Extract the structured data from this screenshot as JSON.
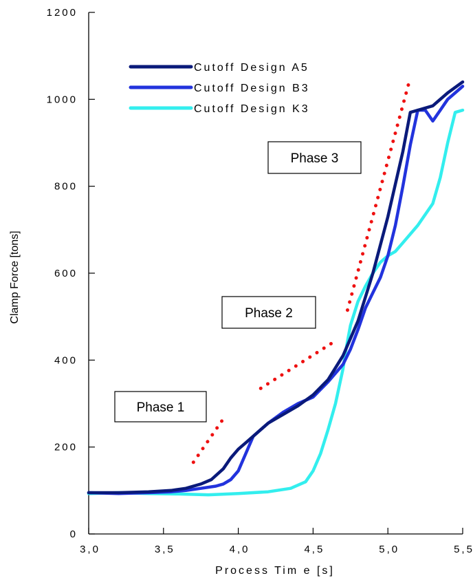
{
  "chart_data": {
    "type": "line",
    "xlabel": "Process Tim e [s]",
    "ylabel": "Clamp Force [tons]",
    "xlim": [
      3.0,
      5.5
    ],
    "ylim": [
      0,
      1200
    ],
    "xticks": [
      3.0,
      3.5,
      4.0,
      4.5,
      5.0,
      5.5
    ],
    "xtick_labels": [
      "3,0",
      "3,5",
      "4,0",
      "4,5",
      "5,0",
      "5,5"
    ],
    "yticks": [
      0,
      200,
      400,
      600,
      800,
      1000,
      1200
    ],
    "ytick_labels": [
      "0",
      "200",
      "400",
      "600",
      "800",
      "1000",
      "1200"
    ],
    "grid": false,
    "legend_placement": "top-left",
    "series": [
      {
        "name": "Cutoff Design A5",
        "color": "#0a1a7a",
        "x": [
          3.0,
          3.2,
          3.4,
          3.55,
          3.65,
          3.75,
          3.82,
          3.9,
          3.95,
          4.0,
          4.05,
          4.1,
          4.15,
          4.2,
          4.3,
          4.4,
          4.5,
          4.6,
          4.7,
          4.8,
          4.9,
          5.0,
          5.1,
          5.15,
          5.2,
          5.3,
          5.4,
          5.5
        ],
        "y": [
          95,
          95,
          97,
          100,
          105,
          115,
          125,
          150,
          175,
          195,
          210,
          225,
          240,
          255,
          275,
          295,
          320,
          355,
          410,
          490,
          600,
          730,
          880,
          970,
          975,
          985,
          1015,
          1040
        ]
      },
      {
        "name": "Cutoff Design B3",
        "color": "#2233dd",
        "x": [
          3.0,
          3.2,
          3.4,
          3.55,
          3.65,
          3.75,
          3.85,
          3.9,
          3.95,
          4.0,
          4.05,
          4.1,
          4.15,
          4.2,
          4.3,
          4.4,
          4.5,
          4.6,
          4.7,
          4.75,
          4.8,
          4.85,
          4.9,
          4.95,
          5.0,
          5.05,
          5.1,
          5.15,
          5.2,
          5.25,
          5.3,
          5.35,
          5.4,
          5.45,
          5.5
        ],
        "y": [
          95,
          93,
          95,
          97,
          100,
          105,
          110,
          115,
          125,
          145,
          185,
          225,
          240,
          255,
          280,
          300,
          315,
          350,
          390,
          425,
          470,
          520,
          555,
          590,
          640,
          710,
          800,
          895,
          975,
          975,
          950,
          975,
          1000,
          1015,
          1030
        ]
      },
      {
        "name": "Cutoff Design K3",
        "color": "#33eeee",
        "x": [
          3.0,
          3.2,
          3.4,
          3.6,
          3.8,
          4.0,
          4.2,
          4.35,
          4.45,
          4.5,
          4.55,
          4.6,
          4.65,
          4.7,
          4.72,
          4.75,
          4.8,
          4.85,
          4.9,
          4.95,
          5.0,
          5.05,
          5.1,
          5.2,
          5.3,
          5.35,
          5.4,
          5.45,
          5.5
        ],
        "y": [
          93,
          95,
          93,
          92,
          90,
          93,
          97,
          105,
          120,
          145,
          185,
          240,
          300,
          380,
          425,
          480,
          535,
          570,
          600,
          625,
          640,
          650,
          670,
          710,
          760,
          820,
          900,
          970,
          975
        ]
      }
    ],
    "trend_lines": [
      {
        "color": "#ee1111",
        "x": [
          3.7,
          3.9
        ],
        "y": [
          165,
          265
        ]
      },
      {
        "color": "#ee1111",
        "x": [
          4.15,
          4.63
        ],
        "y": [
          335,
          440
        ]
      },
      {
        "color": "#ee1111",
        "x": [
          4.73,
          5.15
        ],
        "y": [
          515,
          1050
        ]
      }
    ],
    "annotations": [
      "Phase 1",
      "Phase 2",
      "Phase 3"
    ]
  }
}
